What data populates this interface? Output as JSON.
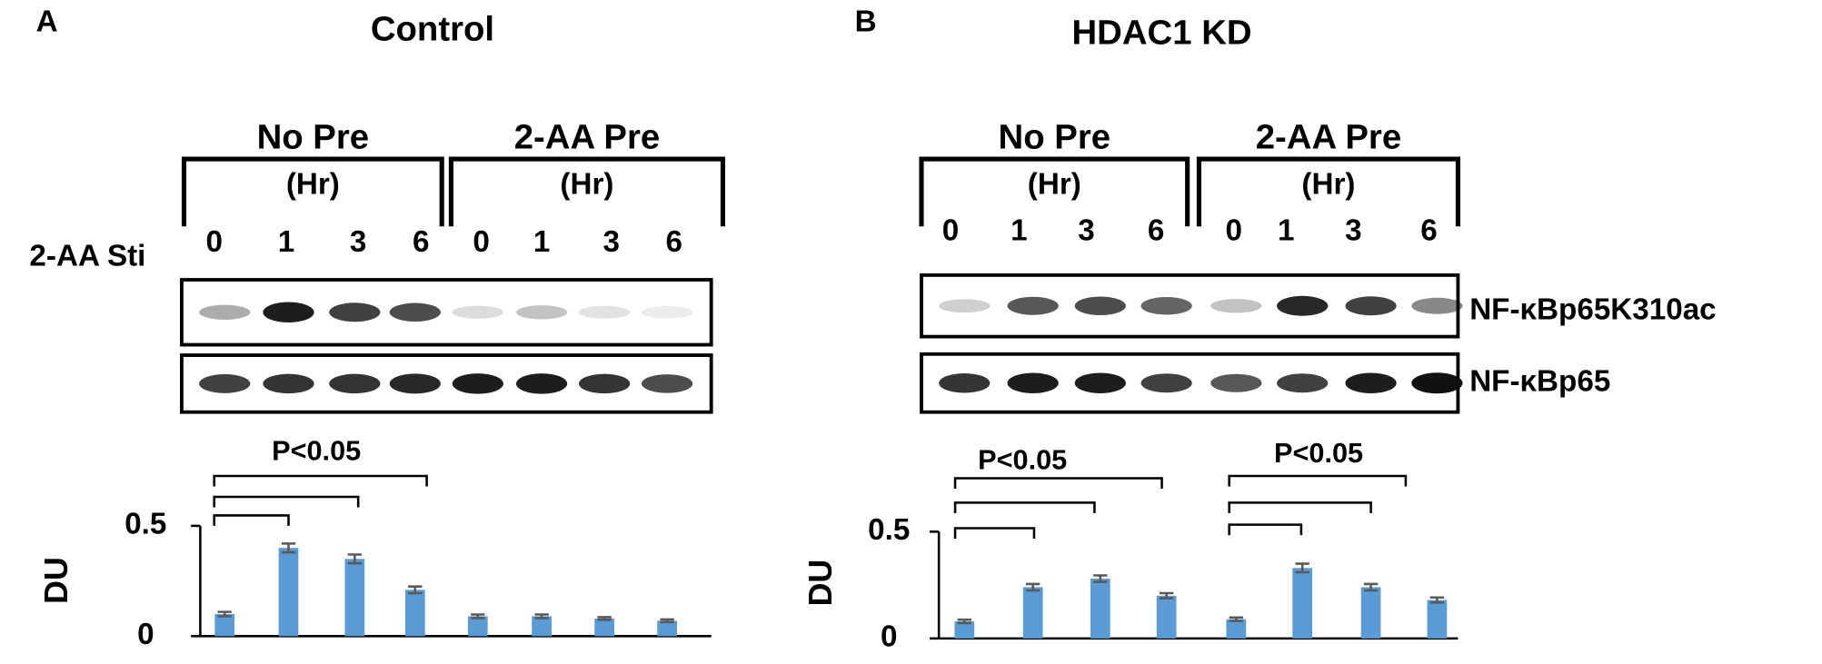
{
  "chart_data": [
    {
      "type": "bar",
      "panel": "A",
      "title": "Control",
      "groups": [
        "No Pre",
        "2-AA Pre"
      ],
      "group_unit": "(Hr)",
      "row_label": "2-AA Sti",
      "categories": [
        "0",
        "1",
        "3",
        "6",
        "0",
        "1",
        "3",
        "6"
      ],
      "ylabel": "DU",
      "values": [
        0.1,
        0.4,
        0.35,
        0.21,
        0.09,
        0.09,
        0.08,
        0.07
      ],
      "errors": [
        0.01,
        0.02,
        0.02,
        0.015,
        0.008,
        0.008,
        0.006,
        0.006
      ],
      "color": "#5b9bd5",
      "error_color": "#595959",
      "ylim": [
        0,
        0.5
      ],
      "yticks": [
        0,
        0.5
      ],
      "significance": "P<0.05"
    },
    {
      "type": "bar",
      "panel": "B",
      "title": "HDAC1 KD",
      "groups": [
        "No Pre",
        "2-AA Pre"
      ],
      "group_unit": "(Hr)",
      "blot_labels": [
        "NF-κBp65K310ac",
        "NF-κBp65"
      ],
      "categories": [
        "0",
        "1",
        "3",
        "6",
        "0",
        "1",
        "3",
        "6"
      ],
      "ylabel": "DU",
      "values": [
        0.08,
        0.24,
        0.28,
        0.2,
        0.09,
        0.33,
        0.24,
        0.18
      ],
      "errors": [
        0.008,
        0.015,
        0.015,
        0.012,
        0.008,
        0.02,
        0.015,
        0.012
      ],
      "color": "#5b9bd5",
      "error_color": "#595959",
      "ylim": [
        0,
        0.5
      ],
      "yticks": [
        0,
        0.5
      ],
      "significance": "P<0.05"
    }
  ]
}
